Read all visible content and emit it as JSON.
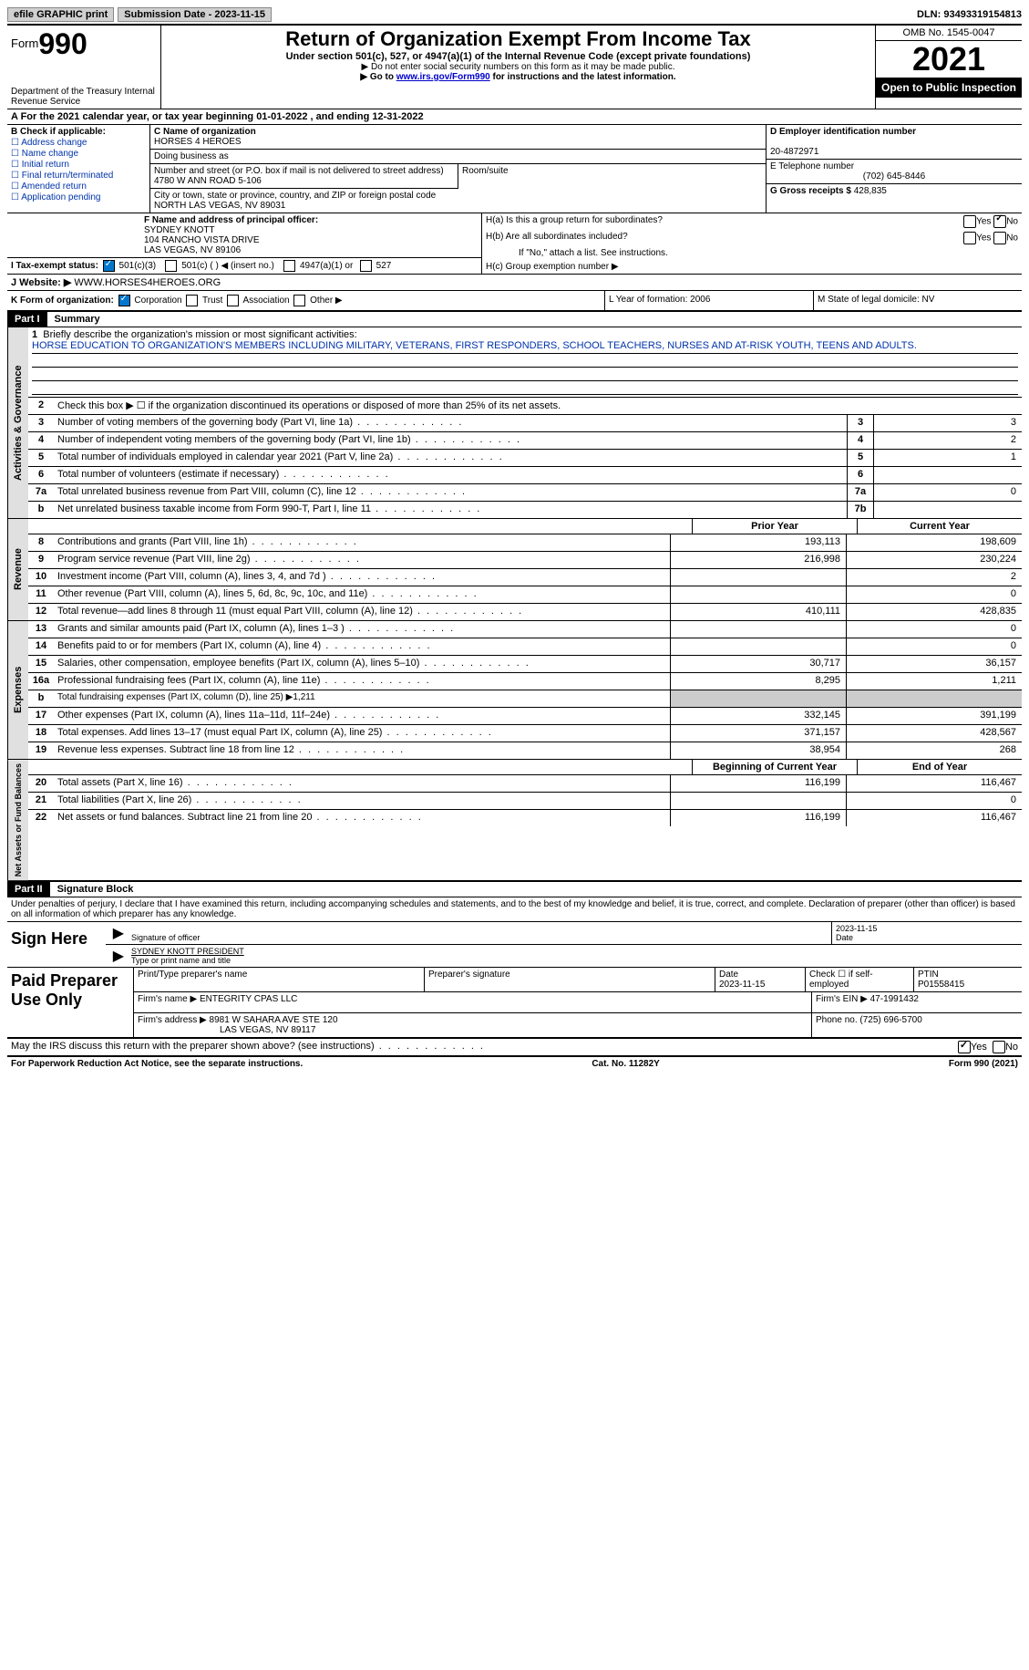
{
  "topbar": {
    "efile": "efile GRAPHIC print",
    "subdate_label": "Submission Date - ",
    "subdate": "2023-11-15",
    "dln_label": "DLN: ",
    "dln": "93493319154813"
  },
  "header": {
    "form_word": "Form",
    "form_num": "990",
    "dept": "Department of the Treasury\nInternal Revenue Service",
    "title": "Return of Organization Exempt From Income Tax",
    "sub": "Under section 501(c), 527, or 4947(a)(1) of the Internal Revenue Code (except private foundations)",
    "note1": "▶ Do not enter social security numbers on this form as it may be made public.",
    "note2_pre": "▶ Go to ",
    "note2_link": "www.irs.gov/Form990",
    "note2_post": " for instructions and the latest information.",
    "omb": "OMB No. 1545-0047",
    "year": "2021",
    "open": "Open to Public Inspection"
  },
  "line_a": "A For the 2021 calendar year, or tax year beginning 01-01-2022   , and ending 12-31-2022",
  "box_b": {
    "label": "B Check if applicable:",
    "opts": [
      "Address change",
      "Name change",
      "Initial return",
      "Final return/terminated",
      "Amended return",
      "Application pending"
    ]
  },
  "box_c": {
    "name_label": "C Name of organization",
    "name": "HORSES 4 HEROES",
    "dba_label": "Doing business as",
    "addr_label": "Number and street (or P.O. box if mail is not delivered to street address)",
    "addr": "4780 W ANN ROAD 5-106",
    "room_label": "Room/suite",
    "city_label": "City or town, state or province, country, and ZIP or foreign postal code",
    "city": "NORTH LAS VEGAS, NV  89031"
  },
  "box_d": {
    "ein_label": "D Employer identification number",
    "ein": "20-4872971",
    "tel_label": "E Telephone number",
    "tel": "(702) 645-8446",
    "gross_label": "G Gross receipts $ ",
    "gross": "428,835"
  },
  "box_f": {
    "label": "F  Name and address of principal officer:",
    "name": "SYDNEY KNOTT",
    "addr1": "104 RANCHO VISTA DRIVE",
    "addr2": "LAS VEGAS, NV  89106"
  },
  "box_h": {
    "ha": "H(a)  Is this a group return for subordinates?",
    "hb": "H(b)  Are all subordinates included?",
    "hb_note": "If \"No,\" attach a list. See instructions.",
    "hc": "H(c)  Group exemption number ▶"
  },
  "tax_status": {
    "label": "I  Tax-exempt status:",
    "opts": [
      "501(c)(3)",
      "501(c) (  ) ◀ (insert no.)",
      "4947(a)(1) or",
      "527"
    ]
  },
  "website": {
    "label": "J Website: ▶  ",
    "value": "WWW.HORSES4HEROES.ORG"
  },
  "form_org": {
    "k": "K Form of organization:",
    "opts": [
      "Corporation",
      "Trust",
      "Association",
      "Other ▶"
    ],
    "l": "L Year of formation: 2006",
    "m": "M State of legal domicile: NV"
  },
  "part1": {
    "title": "Part I",
    "name": "Summary",
    "line1_label": "Briefly describe the organization's mission or most significant activities:",
    "line1_text": "HORSE EDUCATION TO ORGANIZATION'S MEMBERS INCLUDING MILITARY, VETERANS, FIRST RESPONDERS, SCHOOL TEACHERS, NURSES AND AT-RISK YOUTH, TEENS AND ADULTS.",
    "line2": "Check this box ▶ ☐ if the organization discontinued its operations or disposed of more than 25% of its net assets.",
    "rows_governance": [
      {
        "n": "3",
        "d": "Number of voting members of the governing body (Part VI, line 1a)",
        "b": "3",
        "v": "3"
      },
      {
        "n": "4",
        "d": "Number of independent voting members of the governing body (Part VI, line 1b)",
        "b": "4",
        "v": "2"
      },
      {
        "n": "5",
        "d": "Total number of individuals employed in calendar year 2021 (Part V, line 2a)",
        "b": "5",
        "v": "1"
      },
      {
        "n": "6",
        "d": "Total number of volunteers (estimate if necessary)",
        "b": "6",
        "v": ""
      },
      {
        "n": "7a",
        "d": "Total unrelated business revenue from Part VIII, column (C), line 12",
        "b": "7a",
        "v": "0"
      },
      {
        "n": "b",
        "d": "Net unrelated business taxable income from Form 990-T, Part I, line 11",
        "b": "7b",
        "v": ""
      }
    ],
    "prior_label": "Prior Year",
    "current_label": "Current Year",
    "rows_revenue": [
      {
        "n": "8",
        "d": "Contributions and grants (Part VIII, line 1h)",
        "p": "193,113",
        "c": "198,609"
      },
      {
        "n": "9",
        "d": "Program service revenue (Part VIII, line 2g)",
        "p": "216,998",
        "c": "230,224"
      },
      {
        "n": "10",
        "d": "Investment income (Part VIII, column (A), lines 3, 4, and 7d )",
        "p": "",
        "c": "2"
      },
      {
        "n": "11",
        "d": "Other revenue (Part VIII, column (A), lines 5, 6d, 8c, 9c, 10c, and 11e)",
        "p": "",
        "c": "0"
      },
      {
        "n": "12",
        "d": "Total revenue—add lines 8 through 11 (must equal Part VIII, column (A), line 12)",
        "p": "410,111",
        "c": "428,835"
      }
    ],
    "rows_expenses": [
      {
        "n": "13",
        "d": "Grants and similar amounts paid (Part IX, column (A), lines 1–3 )",
        "p": "",
        "c": "0"
      },
      {
        "n": "14",
        "d": "Benefits paid to or for members (Part IX, column (A), line 4)",
        "p": "",
        "c": "0"
      },
      {
        "n": "15",
        "d": "Salaries, other compensation, employee benefits (Part IX, column (A), lines 5–10)",
        "p": "30,717",
        "c": "36,157"
      },
      {
        "n": "16a",
        "d": "Professional fundraising fees (Part IX, column (A), line 11e)",
        "p": "8,295",
        "c": "1,211"
      },
      {
        "n": "b",
        "d": "Total fundraising expenses (Part IX, column (D), line 25) ▶1,211",
        "gray": true
      },
      {
        "n": "17",
        "d": "Other expenses (Part IX, column (A), lines 11a–11d, 11f–24e)",
        "p": "332,145",
        "c": "391,199"
      },
      {
        "n": "18",
        "d": "Total expenses. Add lines 13–17 (must equal Part IX, column (A), line 25)",
        "p": "371,157",
        "c": "428,567"
      },
      {
        "n": "19",
        "d": "Revenue less expenses. Subtract line 18 from line 12",
        "p": "38,954",
        "c": "268"
      }
    ],
    "begin_label": "Beginning of Current Year",
    "end_label": "End of Year",
    "rows_net": [
      {
        "n": "20",
        "d": "Total assets (Part X, line 16)",
        "p": "116,199",
        "c": "116,467"
      },
      {
        "n": "21",
        "d": "Total liabilities (Part X, line 26)",
        "p": "",
        "c": "0"
      },
      {
        "n": "22",
        "d": "Net assets or fund balances. Subtract line 21 from line 20",
        "p": "116,199",
        "c": "116,467"
      }
    ]
  },
  "part2": {
    "title": "Part II",
    "name": "Signature Block",
    "declare": "Under penalties of perjury, I declare that I have examined this return, including accompanying schedules and statements, and to the best of my knowledge and belief, it is true, correct, and complete. Declaration of preparer (other than officer) is based on all information of which preparer has any knowledge.",
    "sign_here": "Sign Here",
    "sig_officer": "Signature of officer",
    "sig_date": "2023-11-15",
    "date_label": "Date",
    "officer_name": "SYDNEY KNOTT  PRESIDENT",
    "type_name": "Type or print name and title",
    "paid_label": "Paid Preparer Use Only",
    "prep_name_label": "Print/Type preparer's name",
    "prep_sig_label": "Preparer's signature",
    "prep_date": "2023-11-15",
    "check_if": "Check ☐ if self-employed",
    "ptin_label": "PTIN",
    "ptin": "P01558415",
    "firm_name_label": "Firm's name     ▶ ",
    "firm_name": "ENTEGRITY CPAS LLC",
    "firm_ein_label": "Firm's EIN ▶ ",
    "firm_ein": "47-1991432",
    "firm_addr_label": "Firm's address ▶ ",
    "firm_addr": "8981 W SAHARA AVE STE 120",
    "firm_city": "LAS VEGAS, NV  89117",
    "firm_phone_label": "Phone no. ",
    "firm_phone": "(725) 696-5700",
    "discuss": "May the IRS discuss this return with the preparer shown above? (see instructions)"
  },
  "footer": {
    "left": "For Paperwork Reduction Act Notice, see the separate instructions.",
    "mid": "Cat. No. 11282Y",
    "right": "Form 990 (2021)"
  }
}
